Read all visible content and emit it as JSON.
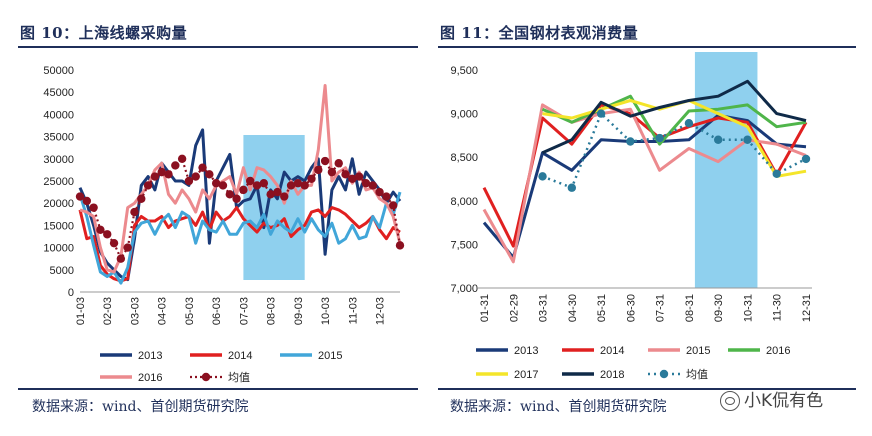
{
  "left": {
    "figure_title": "图 10：上海线螺采购量",
    "source": "数据来源：wind、首创期货研究院"
  },
  "right": {
    "figure_title": "图 11：全国钢材表观消费量",
    "source": "数据来源：wind、首创期货研究院"
  },
  "watermark": "小K侃有色",
  "colors": {
    "2013": "#1a3a78",
    "2014": "#e02020",
    "2015": "#41a6d9",
    "2016_left": "#ec8a8e",
    "2016_right": "#4fb54a",
    "2017": "#f4e52a",
    "2018": "#0f2a48",
    "avg": "#8b1020",
    "avg_right": "#2a7a9a",
    "highlight": "#8fd0ee",
    "rule": "#1f2f5a"
  },
  "chart_data": [
    {
      "type": "line",
      "xlabel": "",
      "ylabel": "",
      "ylim": [
        0,
        50000
      ],
      "yticks": [
        "0",
        "5000",
        "10000",
        "15000",
        "20000",
        "25000",
        "30000",
        "35000",
        "40000",
        "45000",
        "50000"
      ],
      "x_tick_labels": [
        "01-03",
        "02-03",
        "03-03",
        "04-03",
        "05-03",
        "06-03",
        "07-03",
        "08-03",
        "09-03",
        "10-03",
        "11-03",
        "12-03"
      ],
      "highlight_range_weeks": [
        24,
        33
      ],
      "n_weeks": 48,
      "series": [
        {
          "name": "2013",
          "values": [
            23500,
            20000,
            15000,
            9000,
            6500,
            5000,
            3500,
            2800,
            12000,
            24000,
            26000,
            23000,
            29000,
            27000,
            25000,
            25000,
            24000,
            33000,
            36500,
            11000,
            25000,
            28000,
            31000,
            19000,
            20500,
            21000,
            24000,
            14500,
            23000,
            21000,
            27000,
            25000,
            26000,
            25000,
            28000,
            30000,
            8500,
            23000,
            26000,
            23000,
            30000,
            22000,
            27000,
            25000,
            23000,
            20000,
            22500,
            20500
          ]
        },
        {
          "name": "2014",
          "values": [
            18500,
            12000,
            12500,
            6000,
            4000,
            3000,
            2500,
            3000,
            15000,
            17000,
            16000,
            16000,
            17000,
            14500,
            16000,
            16500,
            17000,
            15000,
            18000,
            14000,
            18000,
            16000,
            17000,
            19000,
            16500,
            15000,
            13500,
            15500,
            14500,
            15000,
            16500,
            12500,
            14000,
            15000,
            18000,
            18500,
            17000,
            19000,
            18500,
            17500,
            16000,
            14500,
            15500,
            17000,
            14000,
            12000,
            14500,
            13500
          ]
        },
        {
          "name": "2015",
          "values": [
            22000,
            17000,
            10500,
            4500,
            3500,
            4500,
            2000,
            5500,
            13500,
            15500,
            16000,
            13000,
            16000,
            17500,
            14500,
            18000,
            17000,
            11000,
            16000,
            14000,
            13500,
            16000,
            13000,
            13000,
            15500,
            16000,
            14500,
            17500,
            13000,
            16000,
            14500,
            13500,
            16500,
            13500,
            16500,
            14000,
            12500,
            15500,
            11000,
            12000,
            15000,
            12000,
            12500,
            17000,
            14500,
            20000,
            17500,
            22500
          ]
        },
        {
          "name": "2016",
          "values": [
            18500,
            18000,
            17000,
            10000,
            5000,
            4500,
            8000,
            19000,
            20000,
            22000,
            24000,
            27500,
            29000,
            22000,
            20000,
            23000,
            21000,
            18000,
            23000,
            21000,
            24000,
            25000,
            26000,
            22000,
            28000,
            23000,
            28000,
            27500,
            26000,
            24000,
            20000,
            25000,
            22000,
            24000,
            24000,
            32000,
            46500,
            25000,
            27000,
            28000,
            24500,
            27000,
            23000,
            23500,
            21000,
            20000,
            17000,
            11000
          ]
        },
        {
          "name": "均值",
          "values": [
            21500,
            20500,
            19000,
            14000,
            13000,
            11000,
            7500,
            10000,
            18000,
            21000,
            24000,
            26000,
            27000,
            26500,
            28500,
            30000,
            25000,
            26000,
            28000,
            26500,
            24500,
            24000,
            22000,
            21000,
            23000,
            25000,
            24000,
            24500,
            22000,
            22500,
            21500,
            24000,
            24500,
            24000,
            25500,
            27500,
            29500,
            27000,
            29000,
            26500,
            25500,
            26000,
            24500,
            24000,
            22500,
            21500,
            19500,
            10500
          ]
        }
      ]
    },
    {
      "type": "line",
      "xlabel": "",
      "ylabel": "",
      "ylim": [
        7000,
        9500
      ],
      "yticks": [
        "7,000",
        "7,500",
        "8,000",
        "8,500",
        "9,000",
        "9,500"
      ],
      "categories": [
        "01-31",
        "02-29",
        "03-31",
        "04-30",
        "05-31",
        "06-30",
        "07-31",
        "08-31",
        "09-30",
        "10-31",
        "11-30",
        "12-31"
      ],
      "highlight_range": [
        "08-31",
        "10-31"
      ],
      "series": [
        {
          "name": "2013",
          "values": [
            7750,
            7350,
            8550,
            8350,
            8700,
            8680,
            8680,
            8700,
            8980,
            8920,
            8650,
            8620
          ]
        },
        {
          "name": "2014",
          "values": [
            8150,
            7480,
            8950,
            8650,
            9100,
            9000,
            8720,
            8850,
            8950,
            8900,
            8300,
            8900
          ]
        },
        {
          "name": "2015",
          "values": [
            7900,
            7300,
            9100,
            8900,
            9000,
            9050,
            8350,
            8600,
            8450,
            8700,
            8650,
            8520
          ]
        },
        {
          "name": "2016",
          "values": [
            null,
            null,
            9050,
            8900,
            9050,
            9200,
            8650,
            9030,
            9050,
            9100,
            8850,
            8900
          ]
        },
        {
          "name": "2017",
          "values": [
            null,
            null,
            9000,
            8950,
            9050,
            9150,
            9050,
            9150,
            9000,
            8850,
            8280,
            8340
          ]
        },
        {
          "name": "2018",
          "values": [
            null,
            null,
            8550,
            8700,
            9130,
            8970,
            9070,
            9150,
            9200,
            9370,
            9000,
            8920
          ]
        },
        {
          "name": "均值",
          "values": [
            null,
            null,
            8280,
            8150,
            9000,
            8680,
            8720,
            8890,
            8700,
            8700,
            8310,
            8480
          ]
        }
      ]
    }
  ]
}
